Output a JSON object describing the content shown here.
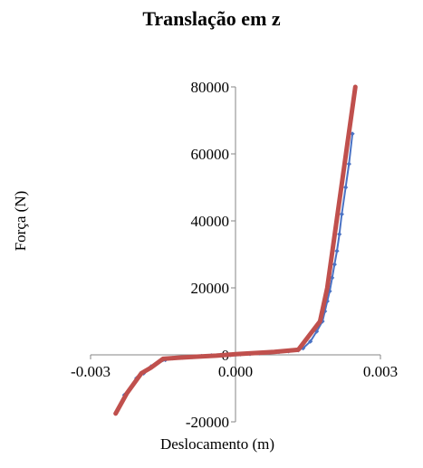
{
  "chart_data": {
    "type": "line",
    "title": "Translação em z",
    "xlabel": "Deslocamento (m)",
    "ylabel": "Força (N)",
    "xlim": [
      -0.003,
      0.003
    ],
    "ylim": [
      -20000,
      80000
    ],
    "x_ticks": [
      "-0.003",
      "0.000",
      "0.003"
    ],
    "y_ticks": [
      "-20000",
      "0",
      "20000",
      "40000",
      "60000",
      "80000"
    ],
    "legend": "none",
    "grid": false,
    "series": [
      {
        "color": "#4a72c4",
        "marker": "diamond",
        "x": [
          -0.00248,
          -0.0023,
          -0.00205,
          -0.0019,
          -0.00175,
          -0.00162,
          -0.00145,
          -0.0013,
          -0.0011,
          -0.0009,
          -0.0007,
          -0.0005,
          -0.0003,
          -0.0001,
          0.0,
          0.0001,
          0.0003,
          0.0005,
          0.0007,
          0.0009,
          0.0011,
          0.0013,
          0.0014,
          0.00155,
          0.00168,
          0.0018,
          0.00185,
          0.0019,
          0.00195,
          0.002,
          0.00205,
          0.0021,
          0.00215,
          0.0022,
          0.00228,
          0.00235,
          0.00242
        ],
        "y": [
          -17500,
          -12000,
          -7000,
          -5500,
          -3500,
          -2500,
          -1500,
          -1000,
          -800,
          -600,
          -400,
          -200,
          -100,
          0,
          100,
          200,
          300,
          500,
          700,
          900,
          1100,
          1400,
          2000,
          4000,
          7000,
          10000,
          13000,
          16000,
          19000,
          23000,
          27000,
          31000,
          36000,
          42000,
          50000,
          57000,
          66000
        ]
      },
      {
        "color": "#c0504d",
        "marker": "none",
        "x": [
          -0.00248,
          -0.00225,
          -0.00195,
          -0.00175,
          -0.0015,
          -0.0012,
          -0.0008,
          -0.0004,
          0.0,
          0.0004,
          0.0008,
          0.0013,
          0.00175,
          0.0019,
          0.00248
        ],
        "y": [
          -17500,
          -11500,
          -5500,
          -3800,
          -1200,
          -900,
          -550,
          -250,
          200,
          550,
          900,
          1500,
          10000,
          20000,
          80000
        ]
      }
    ]
  }
}
